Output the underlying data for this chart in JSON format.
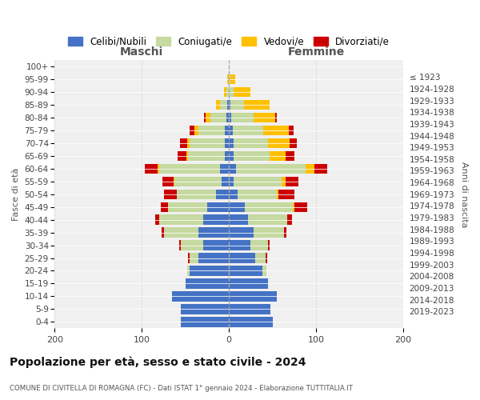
{
  "age_groups": [
    "0-4",
    "5-9",
    "10-14",
    "15-19",
    "20-24",
    "25-29",
    "30-34",
    "35-39",
    "40-44",
    "45-49",
    "50-54",
    "55-59",
    "60-64",
    "65-69",
    "70-74",
    "75-79",
    "80-84",
    "85-89",
    "90-94",
    "95-99",
    "100+"
  ],
  "birth_years": [
    "2019-2023",
    "2014-2018",
    "2009-2013",
    "2004-2008",
    "1999-2003",
    "1994-1998",
    "1989-1993",
    "1984-1988",
    "1979-1983",
    "1974-1978",
    "1969-1973",
    "1964-1968",
    "1959-1963",
    "1954-1958",
    "1949-1953",
    "1944-1948",
    "1939-1943",
    "1934-1938",
    "1929-1933",
    "1924-1928",
    "≤ 1923"
  ],
  "maschi": {
    "celibi": [
      55,
      55,
      65,
      50,
      45,
      35,
      30,
      35,
      30,
      25,
      15,
      8,
      10,
      5,
      5,
      5,
      3,
      2,
      0,
      0,
      0
    ],
    "coniugati": [
      0,
      0,
      0,
      0,
      3,
      10,
      25,
      40,
      50,
      45,
      45,
      55,
      70,
      42,
      40,
      30,
      18,
      8,
      3,
      0,
      0
    ],
    "vedovi": [
      0,
      0,
      0,
      0,
      0,
      0,
      0,
      0,
      0,
      0,
      0,
      1,
      2,
      2,
      3,
      5,
      6,
      5,
      3,
      2,
      0
    ],
    "divorziati": [
      0,
      0,
      0,
      0,
      0,
      2,
      2,
      2,
      5,
      8,
      15,
      12,
      15,
      10,
      8,
      5,
      2,
      0,
      0,
      0,
      0
    ]
  },
  "femmine": {
    "nubili": [
      50,
      48,
      55,
      45,
      38,
      30,
      25,
      28,
      22,
      18,
      10,
      5,
      8,
      5,
      5,
      4,
      3,
      2,
      0,
      0,
      0
    ],
    "coniugate": [
      0,
      0,
      0,
      0,
      5,
      12,
      20,
      35,
      45,
      55,
      45,
      55,
      80,
      42,
      40,
      35,
      25,
      15,
      5,
      2,
      0
    ],
    "vedove": [
      0,
      0,
      0,
      0,
      0,
      0,
      0,
      0,
      0,
      2,
      2,
      5,
      10,
      18,
      25,
      30,
      25,
      30,
      20,
      5,
      0
    ],
    "divorziate": [
      0,
      0,
      0,
      0,
      0,
      2,
      2,
      3,
      5,
      15,
      18,
      15,
      15,
      10,
      8,
      5,
      2,
      0,
      0,
      0,
      0
    ]
  },
  "colors": {
    "celibi": "#4472c4",
    "coniugati": "#c5d9a0",
    "vedovi": "#ffc000",
    "divorziati": "#cc0000"
  },
  "title": "Popolazione per età, sesso e stato civile - 2024",
  "subtitle": "COMUNE DI CIVITELLA DI ROMAGNA (FC) - Dati ISTAT 1° gennaio 2024 - Elaborazione TUTTITALIA.IT",
  "xlabel_left": "Maschi",
  "xlabel_right": "Femmine",
  "ylabel_left": "Fasce di età",
  "ylabel_right": "Anni di nascita",
  "legend_labels": [
    "Celibi/Nubili",
    "Coniugati/e",
    "Vedovi/e",
    "Divorziati/e"
  ],
  "xlim": 200,
  "background_color": "#ffffff"
}
